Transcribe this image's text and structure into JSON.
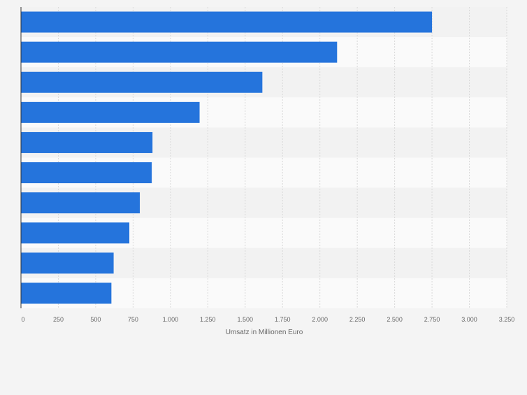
{
  "colors": {
    "page_background": "#f4f4f4",
    "bar": "#2574dc",
    "band_dark": "#f2f2f2",
    "band_light": "#fafafa",
    "grid": "#d9d9d9",
    "axis": "#333333",
    "tick_text": "#666666"
  },
  "chart_data": {
    "type": "bar",
    "orientation": "horizontal",
    "categories": [
      "",
      "",
      "",
      "",
      "",
      "",
      "",
      "",
      "",
      ""
    ],
    "values": [
      2750,
      2115,
      1615,
      1195,
      880,
      875,
      795,
      725,
      620,
      605
    ],
    "xlabel": "Umsatz in Millionen Euro",
    "ylabel": "",
    "xlim": [
      0,
      3250
    ],
    "ticks": [
      0,
      250,
      500,
      750,
      1000,
      1250,
      1500,
      1750,
      2000,
      2250,
      2500,
      2750,
      3000,
      3250
    ],
    "tick_labels": [
      "0",
      "250",
      "500",
      "750",
      "1.000",
      "1.250",
      "1.500",
      "1.750",
      "2.000",
      "2.250",
      "2.500",
      "2.750",
      "3.000",
      "3.250"
    ],
    "grid": true,
    "legend": "none"
  }
}
